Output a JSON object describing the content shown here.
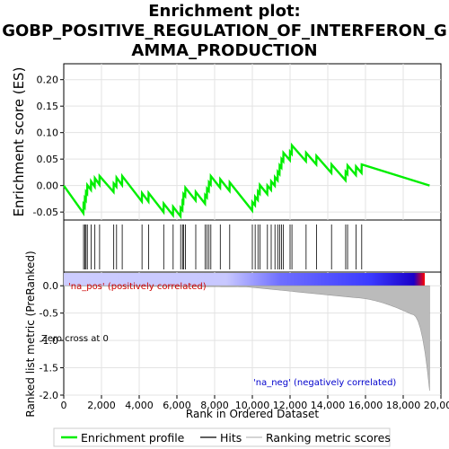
{
  "chart_data": {
    "type": "line",
    "title_lines": [
      "Enrichment plot:",
      "GOBP_POSITIVE_REGULATION_OF_INTERFERON_G",
      "AMMA_PRODUCTION"
    ],
    "es_ylabel": "Enrichment score (ES)",
    "rank_ylabel": "Ranked list metric (PreRanked)",
    "xlabel": "Rank in Ordered Dataset",
    "xlim": [
      0,
      20000
    ],
    "es_ylim": [
      -0.065,
      0.23
    ],
    "rank_ylim": [
      -2.0,
      0.25
    ],
    "x_ticks": [
      "0",
      "2,000",
      "4,000",
      "6,000",
      "8,000",
      "10,000",
      "12,000",
      "14,000",
      "16,000",
      "18,000",
      "20,000"
    ],
    "x_tick_values": [
      0,
      2000,
      4000,
      6000,
      8000,
      10000,
      12000,
      14000,
      16000,
      18000,
      20000
    ],
    "es_ticks": [
      "-0.05",
      "0.00",
      "0.05",
      "0.10",
      "0.15",
      "0.20"
    ],
    "es_tick_values": [
      -0.05,
      0.0,
      0.05,
      0.1,
      0.15,
      0.2
    ],
    "rank_ticks": [
      "0.0",
      "-0.5",
      "-1.0",
      "-1.5",
      "-2.0"
    ],
    "rank_tick_values": [
      0.0,
      -0.5,
      -1.0,
      -1.5,
      -2.0
    ],
    "annotations": {
      "pos": "'na_pos' (positively correlated)",
      "neg": "'na_neg' (negatively correlated)",
      "zero": "Zero cross at 0"
    },
    "total_genes": 19400,
    "hits": [
      1050,
      1120,
      1180,
      1250,
      1450,
      1650,
      1900,
      2650,
      2800,
      3100,
      4150,
      4500,
      5300,
      5800,
      6200,
      6300,
      6350,
      6450,
      7000,
      7500,
      7600,
      7700,
      7800,
      8300,
      8800,
      10000,
      10150,
      10300,
      10400,
      10800,
      11000,
      11200,
      11350,
      11450,
      11550,
      11650,
      12000,
      12100,
      12850,
      13400,
      14200,
      14950,
      15050,
      15500,
      15800
    ],
    "es_points": [
      [
        0,
        0.0
      ],
      [
        1040,
        -0.052
      ],
      [
        1050,
        -0.036
      ],
      [
        1110,
        -0.04
      ],
      [
        1120,
        -0.024
      ],
      [
        1170,
        -0.027
      ],
      [
        1180,
        -0.012
      ],
      [
        1240,
        -0.015
      ],
      [
        1250,
        0.001
      ],
      [
        1440,
        -0.008
      ],
      [
        1450,
        0.008
      ],
      [
        1640,
        -0.002
      ],
      [
        1650,
        0.014
      ],
      [
        1890,
        0.002
      ],
      [
        1900,
        0.018
      ],
      [
        2640,
        -0.012
      ],
      [
        2650,
        0.004
      ],
      [
        2790,
        -0.002
      ],
      [
        2800,
        0.015
      ],
      [
        3090,
        0.001
      ],
      [
        3100,
        0.018
      ],
      [
        4140,
        -0.03
      ],
      [
        4150,
        -0.014
      ],
      [
        4490,
        -0.03
      ],
      [
        4500,
        -0.014
      ],
      [
        5290,
        -0.05
      ],
      [
        5300,
        -0.034
      ],
      [
        5790,
        -0.056
      ],
      [
        5800,
        -0.04
      ],
      [
        6190,
        -0.058
      ],
      [
        6200,
        -0.042
      ],
      [
        6290,
        -0.046
      ],
      [
        6300,
        -0.03
      ],
      [
        6340,
        -0.032
      ],
      [
        6350,
        -0.016
      ],
      [
        6440,
        -0.02
      ],
      [
        6450,
        -0.004
      ],
      [
        6990,
        -0.028
      ],
      [
        7000,
        -0.012
      ],
      [
        7490,
        -0.034
      ],
      [
        7500,
        -0.018
      ],
      [
        7590,
        -0.022
      ],
      [
        7600,
        -0.006
      ],
      [
        7690,
        -0.01
      ],
      [
        7700,
        0.006
      ],
      [
        7790,
        0.002
      ],
      [
        7800,
        0.018
      ],
      [
        8290,
        -0.004
      ],
      [
        8300,
        0.012
      ],
      [
        8790,
        -0.01
      ],
      [
        8800,
        0.006
      ],
      [
        9990,
        -0.047
      ],
      [
        10000,
        -0.031
      ],
      [
        10140,
        -0.037
      ],
      [
        10150,
        -0.021
      ],
      [
        10290,
        -0.027
      ],
      [
        10300,
        -0.011
      ],
      [
        10390,
        -0.015
      ],
      [
        10400,
        0.001
      ],
      [
        10790,
        -0.016
      ],
      [
        10800,
        0.0
      ],
      [
        10990,
        -0.008
      ],
      [
        11000,
        0.008
      ],
      [
        11190,
        0.0
      ],
      [
        11200,
        0.016
      ],
      [
        11340,
        0.01
      ],
      [
        11350,
        0.026
      ],
      [
        11440,
        0.022
      ],
      [
        11450,
        0.038
      ],
      [
        11540,
        0.034
      ],
      [
        11550,
        0.05
      ],
      [
        11640,
        0.046
      ],
      [
        11650,
        0.062
      ],
      [
        11990,
        0.048
      ],
      [
        12000,
        0.064
      ],
      [
        12090,
        0.06
      ],
      [
        12100,
        0.076
      ],
      [
        12840,
        0.046
      ],
      [
        12850,
        0.062
      ],
      [
        13390,
        0.04
      ],
      [
        13400,
        0.056
      ],
      [
        14190,
        0.024
      ],
      [
        14200,
        0.04
      ],
      [
        14940,
        0.01
      ],
      [
        14950,
        0.026
      ],
      [
        15040,
        0.022
      ],
      [
        15050,
        0.038
      ],
      [
        15490,
        0.02
      ],
      [
        15500,
        0.036
      ],
      [
        15790,
        0.024
      ],
      [
        15800,
        0.04
      ],
      [
        19400,
        0.0
      ]
    ]
  },
  "legend": {
    "items": [
      {
        "label": "Enrichment profile",
        "color": "#00ff00"
      },
      {
        "label": "Hits",
        "color": "#000000"
      },
      {
        "label": "Ranking metric scores",
        "color": "#bbbbbb"
      }
    ]
  }
}
